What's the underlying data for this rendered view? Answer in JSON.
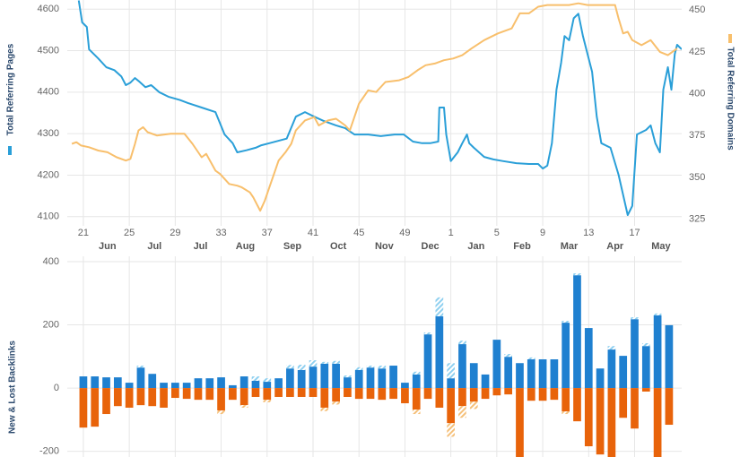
{
  "chart_data": [
    {
      "type": "line",
      "series": [
        {
          "name": "Total Referring Pages",
          "color": "#2a9fd8",
          "x": [
            20.6,
            20.9,
            21.3,
            21.5,
            22.3,
            23.0,
            23.7,
            24.3,
            24.7,
            25.1,
            25.5,
            25.8,
            26.4,
            26.9,
            27.2,
            27.6,
            28.4,
            29.4,
            30.1,
            31.3,
            32.5,
            33.3,
            34.0,
            34.4,
            35.2,
            36.0,
            36.5,
            37.2,
            38.7,
            39.5,
            40.3,
            41.1,
            41.9,
            43.0,
            43.8,
            44.6,
            45.8,
            46.9,
            48.1,
            48.9,
            49.7,
            50.5,
            51.2,
            51.9,
            52.0,
            52.4,
            52.6,
            53.0,
            53.6,
            54.0,
            54.4,
            54.6,
            55.0,
            55.9,
            56.7,
            57.5,
            58.7,
            59.8,
            60.6,
            61.0,
            61.4,
            61.8,
            62.2,
            62.6,
            62.9,
            63.3,
            63.7,
            64.1,
            64.5,
            64.9,
            65.3,
            65.7,
            66.1,
            66.9,
            67.6,
            68.4,
            68.8,
            69.2,
            70.0,
            70.4,
            70.8,
            71.2,
            71.5,
            71.9,
            72.2,
            72.5,
            72.7,
            73.1
          ],
          "values": [
            4621,
            4568,
            4557,
            4503,
            4481,
            4460,
            4453,
            4438,
            4417,
            4423,
            4434,
            4427,
            4412,
            4417,
            4410,
            4400,
            4389,
            4381,
            4374,
            4363,
            4352,
            4298,
            4277,
            4255,
            4260,
            4266,
            4272,
            4277,
            4288,
            4341,
            4352,
            4341,
            4331,
            4320,
            4313,
            4298,
            4298,
            4294,
            4298,
            4298,
            4281,
            4277,
            4277,
            4281,
            4363,
            4363,
            4298,
            4234,
            4255,
            4277,
            4298,
            4277,
            4266,
            4244,
            4238,
            4234,
            4229,
            4227,
            4227,
            4216,
            4223,
            4277,
            4406,
            4471,
            4535,
            4525,
            4578,
            4589,
            4535,
            4492,
            4449,
            4341,
            4277,
            4266,
            4201,
            4104,
            4126,
            4298,
            4309,
            4320,
            4277,
            4255,
            4406,
            4460,
            4406,
            4492,
            4514,
            4503
          ]
        },
        {
          "name": "Total Referring Domains",
          "color": "#f8bf6c",
          "axis": "y2",
          "x": [
            20.0,
            20.4,
            20.8,
            21.5,
            22.3,
            23.1,
            23.9,
            24.7,
            25.1,
            25.5,
            25.8,
            26.2,
            26.6,
            27.4,
            28.6,
            29.8,
            30.5,
            31.3,
            31.7,
            32.5,
            32.9,
            33.7,
            34.4,
            34.8,
            35.5,
            35.8,
            36.4,
            36.8,
            37.2,
            37.6,
            38.0,
            38.6,
            39.1,
            39.5,
            40.3,
            41.1,
            41.5,
            42.3,
            43.0,
            43.8,
            44.2,
            45.0,
            45.8,
            46.5,
            47.3,
            48.5,
            49.3,
            50.1,
            50.8,
            51.6,
            52.4,
            53.2,
            54.0,
            54.8,
            55.9,
            57.1,
            58.3,
            59.0,
            59.8,
            60.6,
            61.4,
            62.6,
            63.3,
            64.1,
            64.9,
            66.1,
            67.3,
            67.6,
            68.0,
            68.4,
            68.8,
            69.6,
            70.4,
            71.2,
            71.9,
            72.7
          ],
          "values": [
            370,
            371,
            369,
            368,
            366,
            365,
            362,
            360,
            361,
            370,
            378,
            380,
            377,
            375,
            376,
            376,
            370,
            362,
            364,
            354,
            352,
            346,
            345,
            344,
            341,
            338,
            330,
            336,
            344,
            352,
            360,
            365,
            370,
            378,
            384,
            386,
            381,
            384,
            385,
            381,
            378,
            394,
            402,
            401,
            407,
            408,
            410,
            414,
            417,
            418,
            420,
            421,
            423,
            427,
            432,
            436,
            439,
            448,
            448,
            452,
            453,
            453,
            453,
            454,
            453,
            453,
            453,
            445,
            436,
            437,
            432,
            429,
            432,
            425,
            423,
            427
          ]
        }
      ],
      "xlim": [
        19.6,
        73.1
      ],
      "xticks": [
        21,
        25,
        29,
        33,
        37,
        41,
        45,
        49,
        {
          "value": 53,
          "label": "1"
        },
        {
          "value": 57,
          "label": "5"
        },
        {
          "value": 61,
          "label": "9"
        },
        {
          "value": 65,
          "label": "13"
        },
        {
          "value": 69,
          "label": "17"
        }
      ],
      "x_month_labels": [
        {
          "value": 23.1,
          "label": "Jun"
        },
        {
          "value": 27.2,
          "label": "Jul"
        },
        {
          "value": 31.2,
          "label": "Jul"
        },
        {
          "value": 35.1,
          "label": "Aug"
        },
        {
          "value": 39.2,
          "label": "Sep"
        },
        {
          "value": 43.2,
          "label": "Oct"
        },
        {
          "value": 47.2,
          "label": "Nov"
        },
        {
          "value": 51.2,
          "label": "Dec"
        },
        {
          "value": 55.2,
          "label": "Jan"
        },
        {
          "value": 59.2,
          "label": "Feb"
        },
        {
          "value": 63.3,
          "label": "Mar"
        },
        {
          "value": 67.3,
          "label": "Apr"
        },
        {
          "value": 71.3,
          "label": "May"
        }
      ],
      "ylim": [
        4078,
        4622
      ],
      "yticks": [
        4100,
        4200,
        4300,
        4400,
        4500,
        4600
      ],
      "y2lim": [
        321,
        456
      ],
      "y2ticks": [
        325,
        350,
        375,
        400,
        425,
        450
      ],
      "grid": true
    },
    {
      "type": "bar",
      "y_label": "New & Lost Backlinks",
      "stacked": true,
      "x": [
        21,
        22,
        23,
        24,
        25,
        26,
        27,
        28,
        29,
        30,
        31,
        32,
        33,
        34,
        35,
        36,
        37,
        38,
        39,
        40,
        41,
        42,
        43,
        44,
        45,
        46,
        47,
        48,
        49,
        50,
        51,
        52,
        53,
        54,
        55,
        56,
        57,
        58,
        59,
        60,
        61,
        62,
        63,
        64,
        65,
        66,
        67,
        68,
        69,
        70,
        71,
        72
      ],
      "series": [
        {
          "color": "#1f80d0",
          "values": [
            37,
            37,
            34,
            34,
            17,
            65,
            45,
            17,
            17,
            17,
            31,
            31,
            34,
            9,
            37,
            23,
            20,
            31,
            62,
            57,
            68,
            77,
            77,
            34,
            57,
            65,
            62,
            71,
            17,
            43,
            170,
            227,
            31,
            139,
            79,
            43,
            153,
            99,
            79,
            91,
            91,
            91,
            207,
            357,
            190,
            62,
            122,
            102,
            218,
            133,
            230,
            199
          ]
        },
        {
          "color": "#8fd0f0",
          "hatch": true,
          "values": [
            0,
            0,
            0,
            0,
            0,
            6,
            0,
            0,
            0,
            0,
            0,
            0,
            0,
            0,
            0,
            14,
            11,
            0,
            11,
            17,
            20,
            6,
            9,
            6,
            9,
            6,
            9,
            0,
            0,
            9,
            6,
            60,
            48,
            11,
            0,
            0,
            0,
            9,
            0,
            6,
            0,
            0,
            6,
            6,
            0,
            0,
            11,
            0,
            6,
            9,
            6,
            0
          ]
        },
        {
          "color": "#e8630a",
          "values": [
            -125,
            -122,
            -82,
            -57,
            -62,
            -54,
            -57,
            -62,
            -31,
            -34,
            -37,
            -37,
            -71,
            -37,
            -54,
            -28,
            -37,
            -28,
            -28,
            -28,
            -28,
            -62,
            -43,
            -28,
            -34,
            -34,
            -37,
            -34,
            -48,
            -68,
            -34,
            -62,
            -111,
            -57,
            -43,
            -34,
            -23,
            -20,
            -240,
            -40,
            -40,
            -37,
            -74,
            -105,
            -184,
            -210,
            -240,
            -94,
            -128,
            -11,
            -250,
            -116
          ]
        },
        {
          "color": "#f5c07a",
          "hatch": true,
          "values": [
            0,
            0,
            0,
            0,
            0,
            0,
            0,
            0,
            0,
            0,
            0,
            0,
            -11,
            0,
            -8,
            0,
            -8,
            0,
            0,
            0,
            0,
            -11,
            -9,
            0,
            0,
            0,
            0,
            0,
            0,
            -14,
            0,
            0,
            -43,
            -37,
            -23,
            0,
            0,
            0,
            0,
            0,
            0,
            0,
            -8,
            0,
            0,
            0,
            0,
            0,
            0,
            0,
            0,
            0
          ]
        }
      ],
      "xlim": [
        19.6,
        73.1
      ],
      "ylim": [
        -218,
        417
      ],
      "yticks": [
        400,
        200,
        0,
        -200
      ],
      "grid": true
    }
  ]
}
